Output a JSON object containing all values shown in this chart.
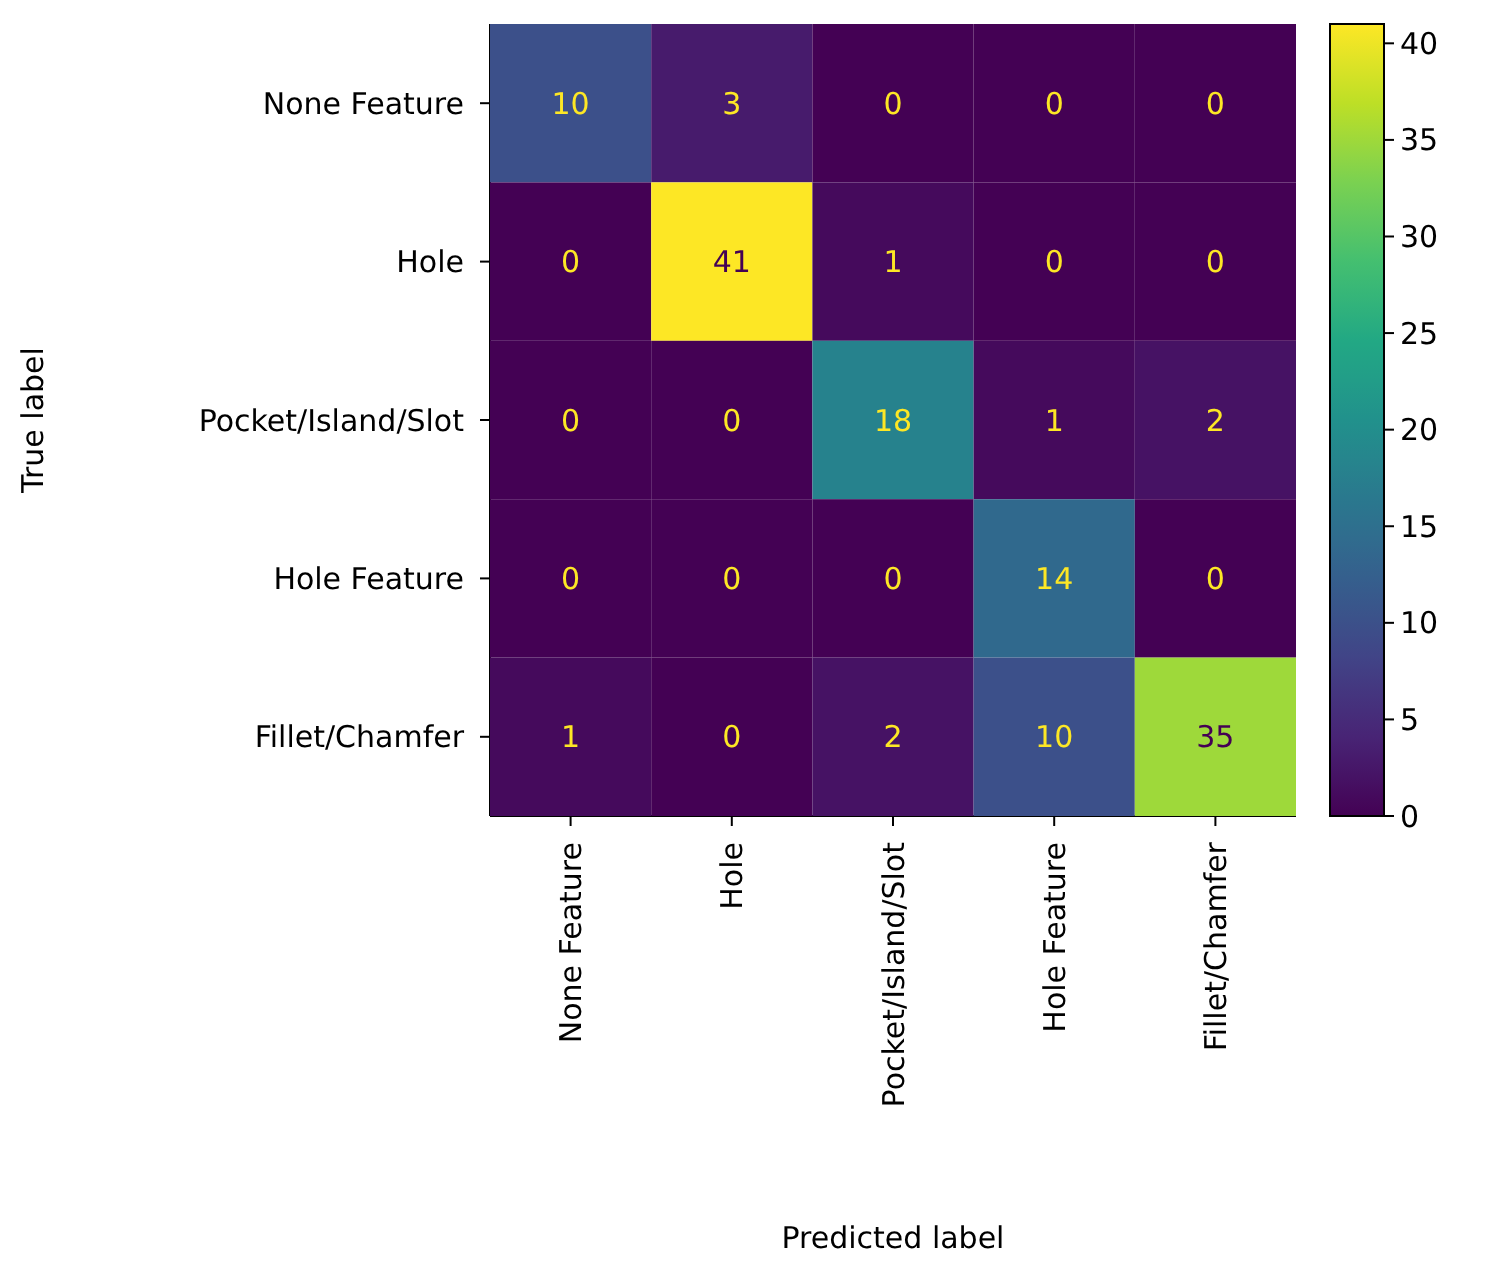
{
  "chart_data": {
    "type": "heatmap",
    "xlabel": "Predicted label",
    "ylabel": "True label",
    "categories": [
      "None Feature",
      "Hole",
      "Pocket/Island/Slot",
      "Hole Feature",
      "Fillet/Chamfer"
    ],
    "y_categories": [
      "None Feature",
      "Hole",
      "Pocket/Island/Slot",
      "Hole Feature",
      "Fillet/Chamfer"
    ],
    "cells": [
      [
        10,
        3,
        0,
        0,
        0
      ],
      [
        0,
        41,
        1,
        0,
        0
      ],
      [
        0,
        0,
        18,
        1,
        2
      ],
      [
        0,
        0,
        0,
        14,
        0
      ],
      [
        1,
        0,
        2,
        10,
        35
      ]
    ],
    "clim": [
      0,
      41
    ],
    "cticks": [
      0,
      5,
      10,
      15,
      20,
      25,
      30,
      35,
      40
    ],
    "data_labels": true
  }
}
